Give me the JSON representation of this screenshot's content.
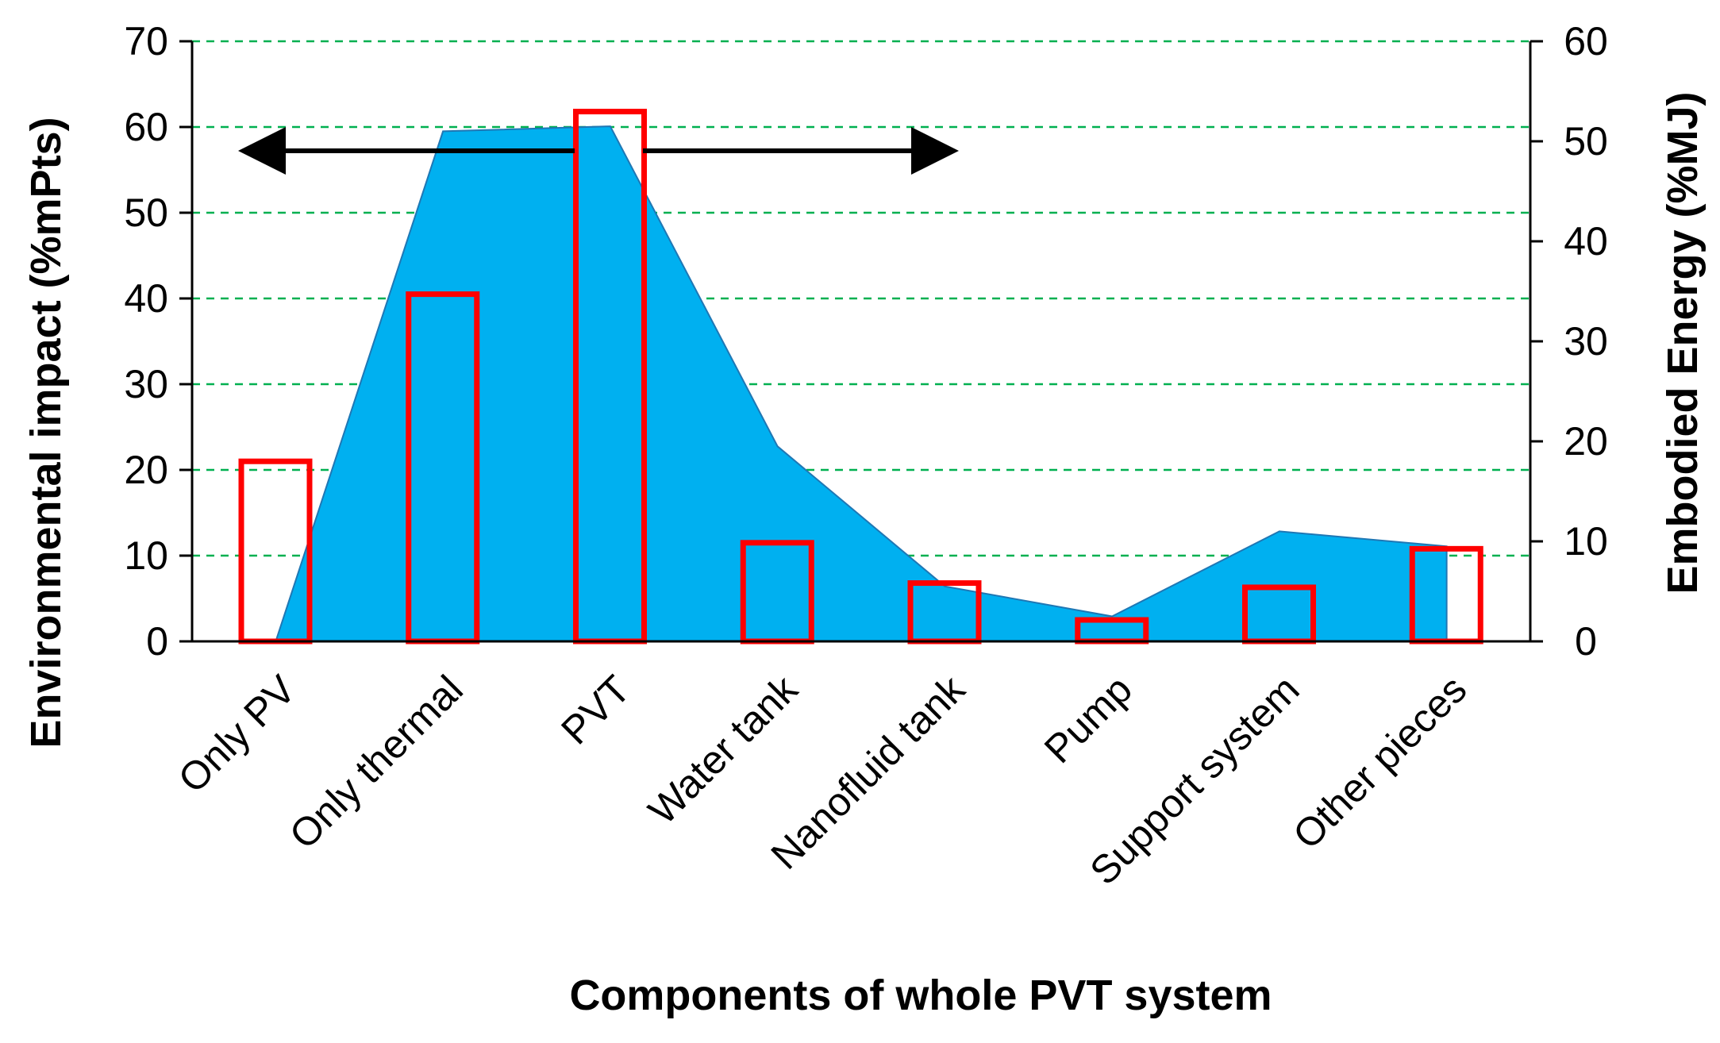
{
  "chart_data": {
    "type": "bar",
    "categories": [
      "Only PV",
      "Only thermal",
      "PVT",
      "Water tank",
      "Nanofluid tank",
      "Pump",
      "Support system",
      "Other pieces"
    ],
    "series": [
      {
        "name": "Environmental impact",
        "type": "bar",
        "axis": "left",
        "unit": "%mPts",
        "color": "#ff0000",
        "fill": "none",
        "values": [
          21,
          40.5,
          61.8,
          11.5,
          6.8,
          2.5,
          6.3,
          10.8
        ]
      },
      {
        "name": "Embodied Energy",
        "type": "area",
        "axis": "right",
        "unit": "%MJ",
        "color": "#00b0f0",
        "line_color": "#1f77b4",
        "values": [
          0,
          51,
          51.5,
          19.5,
          5.5,
          2.5,
          11,
          9.5
        ]
      }
    ],
    "xlabel": "Components of whole PVT system",
    "ylabel_left": "Environmental impact (%mPts)",
    "ylabel_right": "Embodied Energy (%MJ)",
    "ylim_left": [
      0,
      70
    ],
    "ylim_right": [
      0,
      60
    ],
    "yticks_left": [
      0,
      10,
      20,
      30,
      40,
      50,
      60,
      70
    ],
    "yticks_right": [
      0,
      10,
      20,
      30,
      40,
      50,
      60
    ],
    "grid": true,
    "grid_color": "#00b050",
    "annotations": [
      {
        "type": "arrow",
        "direction": "left",
        "points_to": "left-axis"
      },
      {
        "type": "arrow",
        "direction": "right",
        "points_to": "right-axis"
      }
    ]
  }
}
